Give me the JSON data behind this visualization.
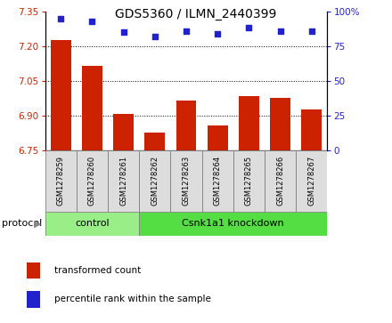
{
  "title": "GDS5360 / ILMN_2440399",
  "samples": [
    "GSM1278259",
    "GSM1278260",
    "GSM1278261",
    "GSM1278262",
    "GSM1278263",
    "GSM1278264",
    "GSM1278265",
    "GSM1278266",
    "GSM1278267"
  ],
  "bar_values": [
    7.225,
    7.115,
    6.905,
    6.825,
    6.965,
    6.855,
    6.985,
    6.975,
    6.925
  ],
  "scatter_values": [
    95,
    93,
    85,
    82,
    86,
    84,
    88,
    86,
    86
  ],
  "ylim_left": [
    6.75,
    7.35
  ],
  "ylim_right": [
    0,
    100
  ],
  "yticks_left": [
    6.75,
    6.9,
    7.05,
    7.2,
    7.35
  ],
  "yticks_right": [
    0,
    25,
    50,
    75,
    100
  ],
  "bar_color": "#cc2200",
  "scatter_color": "#2222cc",
  "control_color": "#99ee88",
  "knockdown_color": "#55dd44",
  "control_label": "control",
  "knockdown_label": "Csnk1a1 knockdown",
  "protocol_label": "protocol",
  "legend_bar_label": "transformed count",
  "legend_scatter_label": "percentile rank within the sample",
  "bar_base": 6.75,
  "cell_bg": "#dddddd",
  "grid_color": "#000000",
  "grid_yticks": [
    6.9,
    7.05,
    7.2
  ]
}
